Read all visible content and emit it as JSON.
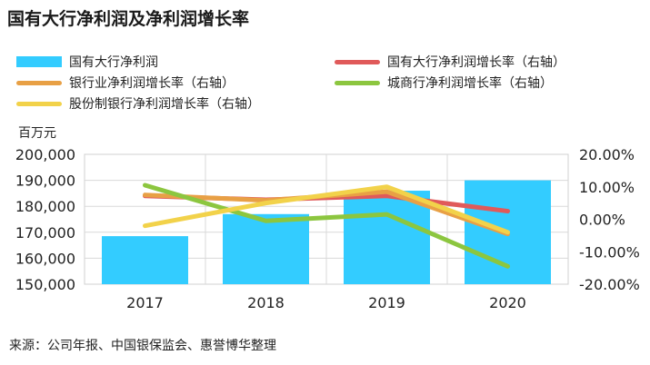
{
  "title": "国有大行净利润及净利润增长率",
  "unit_label": "百万元",
  "source": "来源：公司年报、中国银保监会、惠誉博华整理",
  "chart_data": {
    "type": "bar",
    "title": "国有大行净利润及净利润增长率",
    "categories": [
      "2017",
      "2018",
      "2019",
      "2020"
    ],
    "left_axis": {
      "unit": "百万元",
      "ylim": [
        150000,
        200000
      ],
      "ticks": [
        "150,000",
        "160,000",
        "170,000",
        "180,000",
        "190,000",
        "200,000"
      ]
    },
    "right_axis": {
      "ylim": [
        -20,
        20
      ],
      "ticks": [
        "-20.00%",
        "-10.00%",
        "0.00%",
        "10.00%",
        "20.00%"
      ]
    },
    "grid": true,
    "bars": {
      "name": "国有大行净利润",
      "color": "#33CCFF",
      "values": [
        168500,
        177000,
        186000,
        190000
      ]
    },
    "lines": [
      {
        "name": "国有大行净利润增长率（右轴）",
        "color": "#E05A5A",
        "values": [
          7.2,
          6.0,
          7.2,
          2.5
        ]
      },
      {
        "name": "银行业净利润增长率（右轴）",
        "color": "#E8A045",
        "values": [
          7.5,
          5.8,
          8.5,
          -4.5
        ]
      },
      {
        "name": "城商行净利润增长率（右轴）",
        "color": "#8CC63F",
        "values": [
          10.5,
          -0.5,
          1.5,
          -14.5
        ]
      },
      {
        "name": "股份制银行净利润增长率（右轴）",
        "color": "#F2D24A",
        "values": [
          -2.0,
          5.0,
          10.0,
          -4.0
        ]
      }
    ]
  }
}
